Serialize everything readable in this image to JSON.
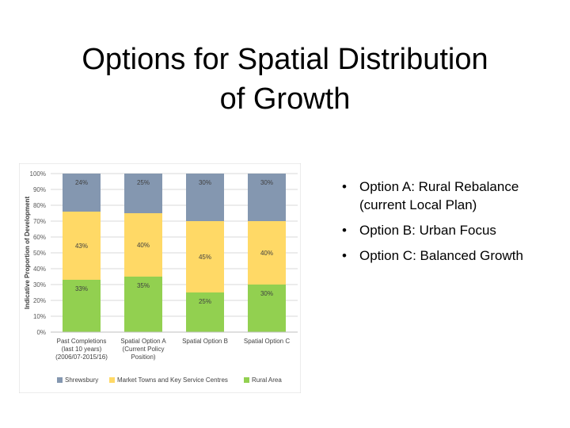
{
  "slide": {
    "title_line1": "Options for Spatial Distribution",
    "title_line2": "of Growth"
  },
  "bullets": [
    {
      "text_line1": "Option A: Rural Rebalance",
      "text_line2": "(current Local Plan)"
    },
    {
      "text_line1": "Option B: Urban Focus"
    },
    {
      "text_line1": "Option C: Balanced Growth"
    }
  ],
  "chart_data": {
    "type": "bar",
    "stacked": true,
    "ylabel": "Indicative Proportion of Development",
    "ylim": [
      0,
      100
    ],
    "y_ticks": [
      "0%",
      "10%",
      "20%",
      "30%",
      "40%",
      "50%",
      "60%",
      "70%",
      "80%",
      "90%",
      "100%"
    ],
    "grid": true,
    "legend_position": "bottom",
    "categories": [
      [
        "Past Completions",
        "(last 10 years)",
        "(2006/07-2015/16)"
      ],
      [
        "Spatial Option A",
        "(Current Policy",
        "Position)"
      ],
      [
        "Spatial Option B"
      ],
      [
        "Spatial Option C"
      ]
    ],
    "series": [
      {
        "name": "Rural Area",
        "color": "#92d050",
        "values": [
          33,
          35,
          25,
          30
        ],
        "labels": [
          "33%",
          "35%",
          "25%",
          "30%"
        ]
      },
      {
        "name": "Market Towns and Key Service Centres",
        "color": "#ffd966",
        "values": [
          43,
          40,
          45,
          40
        ],
        "labels": [
          "43%",
          "40%",
          "45%",
          "40%"
        ]
      },
      {
        "name": "Shrewsbury",
        "color": "#8497b0",
        "values": [
          24,
          25,
          30,
          30
        ],
        "labels": [
          "24%",
          "25%",
          "30%",
          "30%"
        ]
      }
    ],
    "legend_order": [
      "Shrewsbury",
      "Market Towns and Key Service Centres",
      "Rural Area"
    ]
  }
}
